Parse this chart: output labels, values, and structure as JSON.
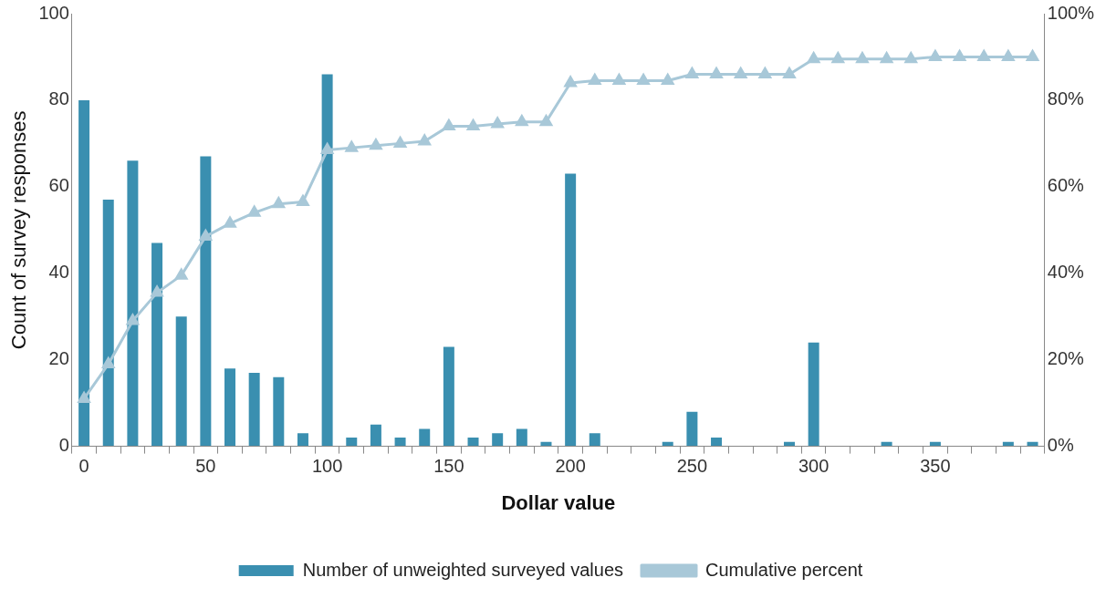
{
  "chart_data": {
    "type": "bar",
    "xlabel": "Dollar value",
    "ylabel": "Count of survey responses",
    "categories": [
      "0",
      null,
      null,
      null,
      null,
      "50",
      null,
      null,
      null,
      null,
      "100",
      null,
      null,
      null,
      null,
      "150",
      null,
      null,
      null,
      null,
      "200",
      null,
      null,
      null,
      null,
      "250",
      null,
      null,
      null,
      null,
      "300",
      null,
      null,
      null,
      null,
      "350",
      null,
      null,
      null,
      null
    ],
    "series": [
      {
        "name": "Number of unweighted surveyed values",
        "color": "#3a8fb0",
        "values": [
          80,
          57,
          66,
          47,
          30,
          67,
          18,
          17,
          16,
          3,
          86,
          2,
          5,
          2,
          4,
          23,
          2,
          3,
          4,
          1,
          63,
          3,
          0,
          0,
          1,
          8,
          2,
          0,
          0,
          1,
          24,
          0,
          0,
          1,
          0,
          1,
          0,
          0,
          1,
          1
        ]
      },
      {
        "name": "Cumulative percent",
        "type": "line",
        "axis": "y2",
        "color": "#a8c8d8",
        "marker": "triangle",
        "values": [
          11,
          19,
          29,
          35.5,
          39.5,
          48.5,
          51.5,
          54,
          56,
          56.5,
          68.5,
          69,
          69.5,
          70,
          70.5,
          74,
          74,
          74.5,
          75,
          75,
          84,
          84.5,
          84.5,
          84.5,
          84.5,
          86,
          86,
          86,
          86,
          86,
          89.5,
          89.5,
          89.5,
          89.5,
          89.5,
          90,
          90,
          90,
          90,
          90
        ]
      }
    ],
    "ylim": [
      0,
      100
    ],
    "yticks": [
      0,
      20,
      40,
      60,
      80,
      100
    ],
    "y2lim": [
      0,
      100
    ],
    "y2ticks": [
      {
        "value": 0,
        "label": "0%"
      },
      {
        "value": 20,
        "label": "20%"
      },
      {
        "value": 40,
        "label": "40%"
      },
      {
        "value": 60,
        "label": "60%"
      },
      {
        "value": 80,
        "label": "80%"
      },
      {
        "value": 100,
        "label": "100%"
      }
    ],
    "grid": false,
    "legend": "bottom"
  }
}
